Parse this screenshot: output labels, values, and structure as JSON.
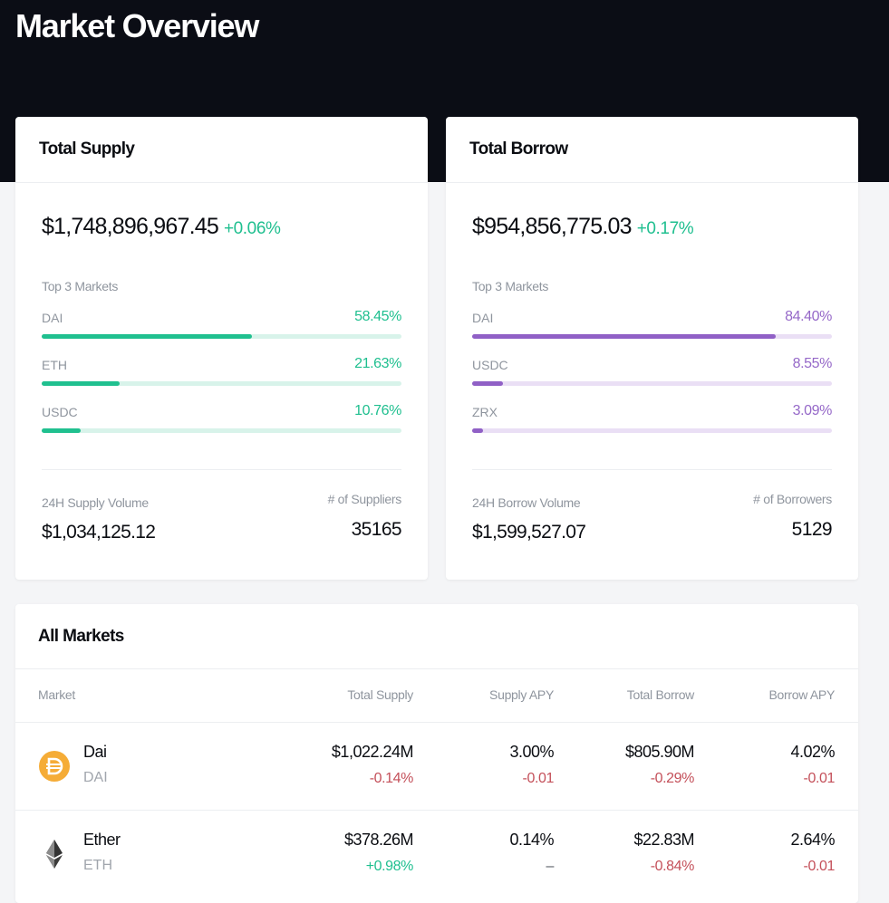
{
  "page": {
    "title": "Market Overview"
  },
  "supply": {
    "title": "Total Supply",
    "total": "$1,748,896,967.45",
    "change": "+0.06%",
    "top_label": "Top 3 Markets",
    "markets": [
      {
        "name": "DAI",
        "pct": "58.45%",
        "fraction": 0.5845
      },
      {
        "name": "ETH",
        "pct": "21.63%",
        "fraction": 0.2163
      },
      {
        "name": "USDC",
        "pct": "10.76%",
        "fraction": 0.1076
      }
    ],
    "volume_label": "24H Supply Volume",
    "volume": "$1,034,125.12",
    "count_label": "# of Suppliers",
    "count": "35165",
    "accent": "#20c08f"
  },
  "borrow": {
    "title": "Total Borrow",
    "total": "$954,856,775.03",
    "change": "+0.17%",
    "top_label": "Top 3 Markets",
    "markets": [
      {
        "name": "DAI",
        "pct": "84.40%",
        "fraction": 0.844
      },
      {
        "name": "USDC",
        "pct": "8.55%",
        "fraction": 0.0855
      },
      {
        "name": "ZRX",
        "pct": "3.09%",
        "fraction": 0.0309
      }
    ],
    "volume_label": "24H Borrow Volume",
    "volume": "$1,599,527.07",
    "count_label": "# of Borrowers",
    "count": "5129",
    "accent": "#9060c6"
  },
  "markets": {
    "title": "All Markets",
    "columns": [
      "Market",
      "Total Supply",
      "Supply APY",
      "Total Borrow",
      "Borrow APY"
    ],
    "rows": [
      {
        "name": "Dai",
        "symbol": "DAI",
        "icon": "dai-icon",
        "total_supply": "$1,022.24M",
        "total_supply_change": "-0.14%",
        "supply_apy": "3.00%",
        "supply_apy_change": "-0.01",
        "total_borrow": "$805.90M",
        "total_borrow_change": "-0.29%",
        "borrow_apy": "4.02%",
        "borrow_apy_change": "-0.01"
      },
      {
        "name": "Ether",
        "symbol": "ETH",
        "icon": "ether-icon",
        "total_supply": "$378.26M",
        "total_supply_change": "+0.98%",
        "supply_apy": "0.14%",
        "supply_apy_change": "–",
        "total_borrow": "$22.83M",
        "total_borrow_change": "-0.84%",
        "borrow_apy": "2.64%",
        "borrow_apy_change": "-0.01"
      }
    ]
  },
  "colors": {
    "header_bg": "#0b0d15",
    "positive": "#1fbf8f",
    "negative": "#c4505a",
    "borrow_accent": "#9568c8",
    "dai_coin": "#f5ac37"
  }
}
